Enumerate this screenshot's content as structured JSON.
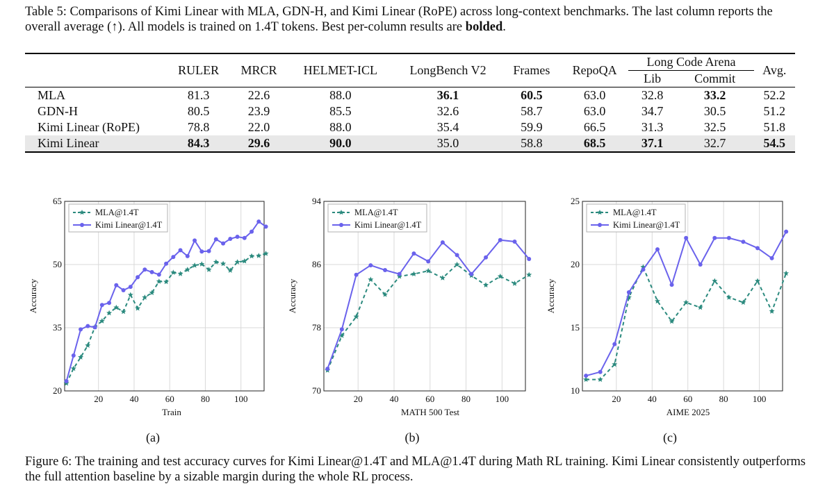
{
  "table": {
    "caption_prefix": "Table 5: Comparisons of Kimi Linear with MLA, GDN-H, and Kimi Linear (RoPE) across long-context benchmarks. The last column reports the overall average (↑). All models is trained on 1.4T tokens. Best per-column results are ",
    "caption_bold": "bolded",
    "caption_suffix": ".",
    "columns": [
      "RULER",
      "MRCR",
      "HELMET-ICL",
      "LongBench V2",
      "Frames",
      "RepoQA",
      "Long Code Arena",
      "Avg."
    ],
    "subcolumns": [
      "Lib",
      "Commit"
    ],
    "rows": [
      {
        "model": "MLA",
        "values": [
          "81.3",
          "22.6",
          "88.0",
          "36.1",
          "60.5",
          "63.0",
          "32.8",
          "33.2",
          "52.2"
        ],
        "bold": [
          3,
          4,
          7
        ]
      },
      {
        "model": "GDN-H",
        "values": [
          "80.5",
          "23.9",
          "85.5",
          "32.6",
          "58.7",
          "63.0",
          "34.7",
          "30.5",
          "51.2"
        ],
        "bold": []
      },
      {
        "model": "Kimi Linear (RoPE)",
        "values": [
          "78.8",
          "22.0",
          "88.0",
          "35.4",
          "59.9",
          "66.5",
          "31.3",
          "32.5",
          "51.8"
        ],
        "bold": []
      },
      {
        "model": "Kimi Linear",
        "values": [
          "84.3",
          "29.6",
          "90.0",
          "35.0",
          "58.8",
          "68.5",
          "37.1",
          "32.7",
          "54.5"
        ],
        "bold": [
          0,
          1,
          2,
          5,
          6,
          8
        ],
        "highlight": true
      }
    ]
  },
  "figure": {
    "caption": "Figure 6: The training and test accuracy curves for Kimi Linear@1.4T and MLA@1.4T during Math RL training. Kimi Linear consistently outperforms the full attention baseline by a sizable margin during the whole RL process."
  },
  "colors": {
    "mla": "#2b8a7e",
    "kimi": "#6a62ec",
    "highlight": "#e8e8e8",
    "grid": "#d9d9d9"
  },
  "chart_data": [
    {
      "type": "line",
      "panel_label": "(a)",
      "xlabel": "Train",
      "ylabel": "Accuracy",
      "xlim": [
        1,
        113
      ],
      "ylim": [
        20,
        65
      ],
      "xticks": [
        20,
        40,
        60,
        80,
        100
      ],
      "yticks": [
        20,
        35,
        50,
        65
      ],
      "legend_position": "top-left",
      "series": [
        {
          "name": "MLA@1.4T",
          "style": "dashed-star",
          "x": [
            2,
            6,
            10,
            14,
            18,
            22,
            26,
            30,
            34,
            38,
            42,
            46,
            50,
            54,
            58,
            62,
            66,
            70,
            74,
            78,
            82,
            86,
            90,
            94,
            98,
            102,
            106,
            110,
            114
          ],
          "y": [
            21.8,
            25.3,
            28,
            30.8,
            35.2,
            36.6,
            38.5,
            39.8,
            38.8,
            42.8,
            39.6,
            42.2,
            43.3,
            46,
            45.9,
            48.1,
            47.8,
            48.8,
            49.8,
            50.1,
            48.8,
            50.6,
            50.2,
            48.6,
            50.6,
            50.8,
            52,
            52.1,
            52.6
          ]
        },
        {
          "name": "Kimi Linear@1.4T",
          "style": "solid-dot",
          "x": [
            2,
            6,
            10,
            14,
            18,
            22,
            26,
            30,
            34,
            38,
            42,
            46,
            50,
            54,
            58,
            62,
            66,
            70,
            74,
            78,
            82,
            86,
            90,
            94,
            98,
            102,
            106,
            110,
            114
          ],
          "y": [
            22.3,
            28.4,
            34.6,
            35.4,
            35.1,
            40.4,
            40.9,
            45.1,
            43.9,
            44.7,
            47,
            48.8,
            48.2,
            47.6,
            50.2,
            51.8,
            53.4,
            52,
            55.7,
            53.1,
            53.2,
            56,
            55,
            56.1,
            56.6,
            56.3,
            57.8,
            60.2,
            59
          ]
        }
      ]
    },
    {
      "type": "line",
      "panel_label": "(b)",
      "xlabel": "MATH 500 Test",
      "ylabel": "Accuracy",
      "xlim": [
        1,
        113
      ],
      "ylim": [
        70,
        94
      ],
      "xticks": [
        20,
        40,
        60,
        80,
        100
      ],
      "yticks": [
        70,
        78,
        86,
        94
      ],
      "legend_position": "top-left",
      "series": [
        {
          "name": "MLA@1.4T",
          "style": "dashed-star",
          "x": [
            3,
            11,
            19,
            27,
            35,
            43,
            51,
            59,
            67,
            75,
            83,
            91,
            99,
            107,
            115
          ],
          "y": [
            72.6,
            77,
            79.4,
            84.1,
            82.2,
            84.5,
            84.8,
            85.2,
            84.3,
            86,
            84.6,
            83.4,
            84.5,
            83.6,
            84.7
          ]
        },
        {
          "name": "Kimi Linear@1.4T",
          "style": "solid-dot",
          "x": [
            3,
            11,
            19,
            27,
            35,
            43,
            51,
            59,
            67,
            75,
            83,
            91,
            99,
            107,
            115
          ],
          "y": [
            72.8,
            77.8,
            84.7,
            85.9,
            85.3,
            84.8,
            87.4,
            86.4,
            88.8,
            87.2,
            84.8,
            86.9,
            89.1,
            88.9,
            86.7
          ]
        }
      ]
    },
    {
      "type": "line",
      "panel_label": "(c)",
      "xlabel": "AIME 2025",
      "ylabel": "Accuracy",
      "xlim": [
        1,
        113
      ],
      "ylim": [
        10,
        25
      ],
      "xticks": [
        20,
        40,
        60,
        80,
        100
      ],
      "yticks": [
        10,
        15,
        20,
        25
      ],
      "legend_position": "top-left",
      "series": [
        {
          "name": "MLA@1.4T",
          "style": "dashed-star",
          "x": [
            3,
            11,
            19,
            27,
            35,
            43,
            51,
            59,
            67,
            75,
            83,
            91,
            99,
            107,
            115
          ],
          "y": [
            10.9,
            10.9,
            12.1,
            17.4,
            19.8,
            17.1,
            15.5,
            17.0,
            16.6,
            18.7,
            17.4,
            17.0,
            18.7,
            16.3,
            19.3
          ]
        },
        {
          "name": "Kimi Linear@1.4T",
          "style": "solid-dot",
          "x": [
            3,
            11,
            19,
            27,
            35,
            43,
            51,
            59,
            67,
            75,
            83,
            91,
            99,
            107,
            115
          ],
          "y": [
            11.2,
            11.5,
            13.7,
            17.8,
            19.6,
            21.2,
            18.4,
            22.1,
            20.0,
            22.1,
            22.1,
            21.8,
            21.3,
            20.5,
            22.6
          ]
        }
      ]
    }
  ]
}
